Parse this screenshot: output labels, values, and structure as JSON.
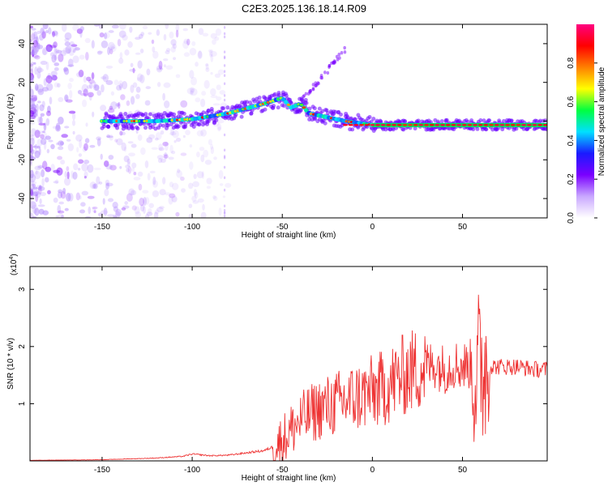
{
  "title": "C2E3.2025.136.18.14.R09",
  "chart_data": [
    {
      "type": "heatmap",
      "xlabel": "Height of straight line (km)",
      "ylabel": "Frequency (Hz)",
      "xlim": [
        -190,
        97
      ],
      "ylim": [
        -50,
        50
      ],
      "xticks": [
        -150,
        -100,
        -50,
        0,
        50
      ],
      "yticks": [
        -40,
        -20,
        0,
        20,
        40
      ],
      "colorbar": {
        "label": "Normalized spectral amplitude",
        "range": [
          0,
          1
        ],
        "ticks": [
          0.0,
          0.2,
          0.4,
          0.6,
          0.8
        ],
        "tick_labels": [
          "0.0",
          "0.2",
          "0.4",
          "0.6",
          "0.8"
        ],
        "colors": [
          "#ffffff",
          "#c9a8ff",
          "#7a00ff",
          "#1a1aff",
          "#00e0ff",
          "#00ff40",
          "#ffff00",
          "#ff8000",
          "#ff0000",
          "#ff0080"
        ]
      },
      "ridge": {
        "x": [
          -150,
          -120,
          -100,
          -80,
          -60,
          -50,
          -45,
          -40,
          -35,
          -25,
          -15,
          0,
          20,
          40,
          55,
          65,
          80,
          97
        ],
        "y": [
          0,
          0,
          1,
          4,
          9,
          12,
          7,
          9,
          4,
          2,
          0,
          -2,
          -2,
          -2,
          -2,
          -2,
          -2,
          -2
        ]
      }
    },
    {
      "type": "line",
      "xlabel": "Height of straight line (km)",
      "ylabel": "SNR (10 * v/v)",
      "multiplier": "(x10",
      "multiplier_exp": "4",
      "multiplier_close": ")",
      "xlim": [
        -190,
        97
      ],
      "ylim": [
        0,
        3.4
      ],
      "xticks": [
        -150,
        -100,
        -50,
        0,
        50
      ],
      "yticks": [
        1,
        2,
        3
      ],
      "color": "#ee3333",
      "series": [
        {
          "x": [
            -190,
            -150,
            -120,
            -105,
            -100,
            -90,
            -80,
            -70,
            -60,
            -55,
            -50,
            -45,
            -40,
            -35,
            -30,
            -25,
            -20,
            -15,
            -10,
            -5,
            0,
            5,
            10,
            15,
            20,
            25,
            30,
            35,
            40,
            45,
            50,
            55,
            57,
            60,
            62,
            65,
            70,
            80,
            90,
            97
          ],
          "y": [
            0.01,
            0.02,
            0.05,
            0.08,
            0.12,
            0.09,
            0.1,
            0.14,
            0.18,
            0.25,
            0.35,
            0.55,
            0.7,
            0.8,
            0.9,
            0.95,
            1.0,
            1.05,
            1.1,
            1.15,
            1.2,
            1.25,
            1.35,
            1.45,
            1.55,
            1.6,
            1.65,
            1.7,
            1.6,
            1.7,
            1.65,
            1.7,
            1.5,
            1.6,
            1.7,
            1.65,
            1.65,
            1.65,
            1.6,
            1.6
          ]
        }
      ]
    }
  ]
}
